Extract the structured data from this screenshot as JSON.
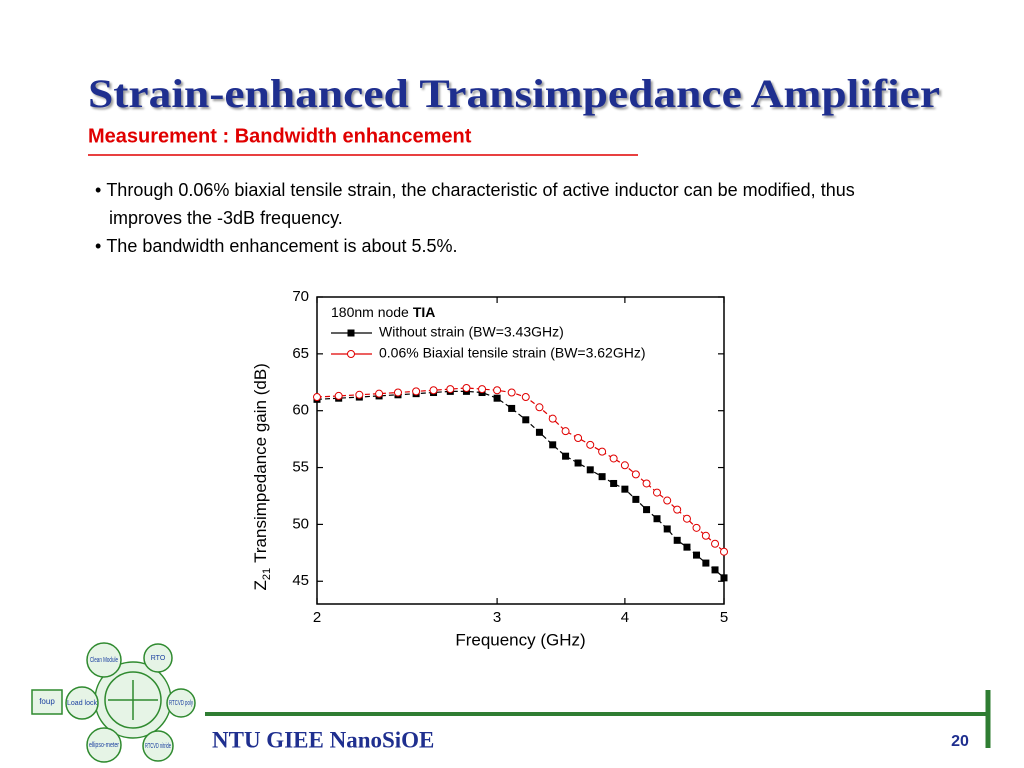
{
  "header": {
    "title": "Strain-enhanced Transimpedance Amplifier",
    "subtitle": "Measurement : Bandwidth enhancement"
  },
  "bullets": [
    "Through 0.06% biaxial tensile strain, the characteristic of active inductor can be modified, thus improves the -3dB frequency.",
    "The bandwidth enhancement is about 5.5%."
  ],
  "chart_data": {
    "type": "line",
    "xlabel": "Frequency (GHz)",
    "ylabel": {
      "symbol": "Z",
      "subscript": "21",
      "text": "Transimpedance gain (dB)"
    },
    "legend_title": "180nm node",
    "legend_title_bold": "TIA",
    "legend_position": "upper left",
    "x": [
      2.0,
      2.1,
      2.2,
      2.3,
      2.4,
      2.5,
      2.6,
      2.7,
      2.8,
      2.9,
      3.0,
      3.1,
      3.2,
      3.3,
      3.4,
      3.5,
      3.6,
      3.7,
      3.8,
      3.9,
      4.0,
      4.1,
      4.2,
      4.3,
      4.4,
      4.5,
      4.6,
      4.7,
      4.8,
      4.9,
      5.0
    ],
    "series": [
      {
        "name": "Without strain (BW=3.43GHz)",
        "color": "#000000",
        "marker": "square",
        "values": [
          61.0,
          61.1,
          61.2,
          61.3,
          61.4,
          61.5,
          61.6,
          61.7,
          61.7,
          61.6,
          61.1,
          60.2,
          59.2,
          58.1,
          57.0,
          56.0,
          55.4,
          54.8,
          54.2,
          53.6,
          53.1,
          52.2,
          51.3,
          50.5,
          49.6,
          48.6,
          48.0,
          47.3,
          46.6,
          46.0,
          45.3
        ]
      },
      {
        "name": "0.06% Biaxial tensile strain (BW=3.62GHz)",
        "color": "#e00000",
        "marker": "open-circle",
        "values": [
          61.2,
          61.3,
          61.4,
          61.5,
          61.6,
          61.7,
          61.8,
          61.9,
          62.0,
          61.9,
          61.8,
          61.6,
          61.2,
          60.3,
          59.3,
          58.2,
          57.6,
          57.0,
          56.4,
          55.8,
          55.2,
          54.4,
          53.6,
          52.8,
          52.1,
          51.3,
          50.5,
          49.7,
          49.0,
          48.3,
          47.6
        ]
      }
    ],
    "xscale": "log",
    "xlim": [
      2,
      5
    ],
    "xticks": [
      2,
      3,
      4,
      5
    ],
    "ylim": [
      43,
      70
    ],
    "yticks": [
      45,
      50,
      55,
      60,
      65,
      70
    ]
  },
  "footer": {
    "org": "NTU GIEE NanoSiOE",
    "page": "20"
  },
  "logo": {
    "clean": "Clean Module",
    "rto": "RTO",
    "rtcv_poly": "RTCVD poly",
    "load": "Load lock",
    "foup": "foup",
    "ellipso": "ellipso-meter",
    "nitride": "RTCVD nitride"
  }
}
